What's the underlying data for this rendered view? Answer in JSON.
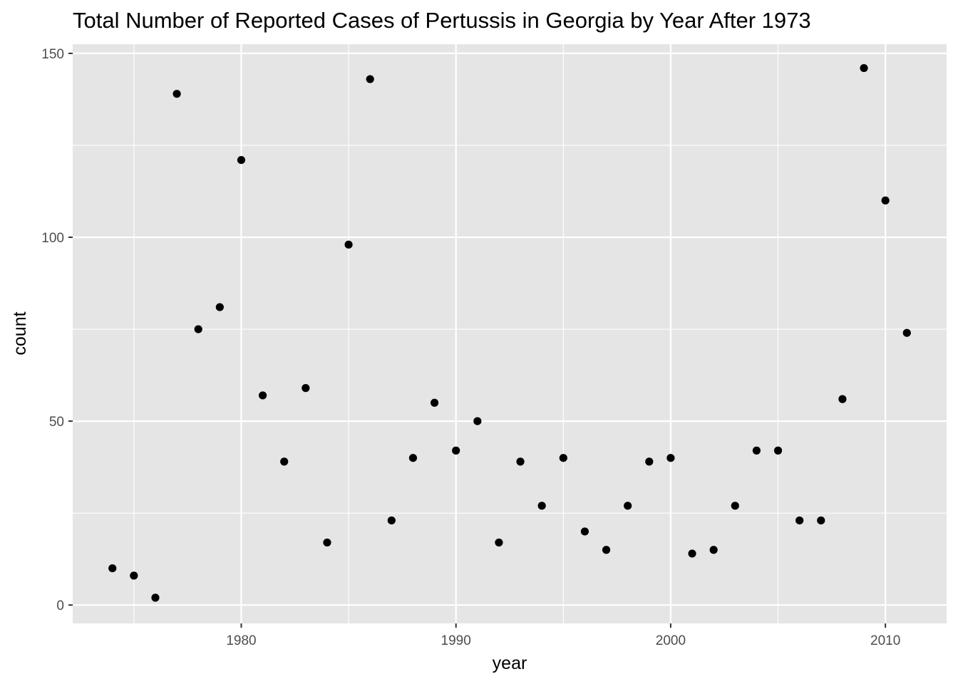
{
  "chart_data": {
    "type": "scatter",
    "title": "Total Number of Reported Cases of Pertussis in Georgia by Year After 1973",
    "xlabel": "year",
    "ylabel": "count",
    "xlim": [
      1972.15,
      2012.85
    ],
    "ylim": [
      -5,
      152.5
    ],
    "x_ticks": [
      1980,
      1990,
      2000,
      2010
    ],
    "x_tick_labels": [
      "1980",
      "1990",
      "2000",
      "2010"
    ],
    "y_ticks": [
      0,
      50,
      100,
      150
    ],
    "y_tick_labels": [
      "0",
      "50",
      "100",
      "150"
    ],
    "grid": true,
    "legend": "none",
    "colors": {
      "panel": "#e5e5e5",
      "grid": "#ffffff",
      "point": "#000000",
      "tick_text": "#4d4d4d"
    },
    "points": [
      {
        "x": 1974,
        "y": 10
      },
      {
        "x": 1975,
        "y": 8
      },
      {
        "x": 1976,
        "y": 2
      },
      {
        "x": 1977,
        "y": 139
      },
      {
        "x": 1978,
        "y": 75
      },
      {
        "x": 1979,
        "y": 81
      },
      {
        "x": 1980,
        "y": 121
      },
      {
        "x": 1981,
        "y": 57
      },
      {
        "x": 1982,
        "y": 39
      },
      {
        "x": 1983,
        "y": 59
      },
      {
        "x": 1984,
        "y": 17
      },
      {
        "x": 1985,
        "y": 98
      },
      {
        "x": 1986,
        "y": 143
      },
      {
        "x": 1987,
        "y": 23
      },
      {
        "x": 1988,
        "y": 40
      },
      {
        "x": 1989,
        "y": 55
      },
      {
        "x": 1990,
        "y": 42
      },
      {
        "x": 1991,
        "y": 50
      },
      {
        "x": 1992,
        "y": 17
      },
      {
        "x": 1993,
        "y": 39
      },
      {
        "x": 1994,
        "y": 27
      },
      {
        "x": 1995,
        "y": 40
      },
      {
        "x": 1996,
        "y": 20
      },
      {
        "x": 1997,
        "y": 15
      },
      {
        "x": 1998,
        "y": 27
      },
      {
        "x": 1999,
        "y": 39
      },
      {
        "x": 2000,
        "y": 40
      },
      {
        "x": 2001,
        "y": 14
      },
      {
        "x": 2002,
        "y": 15
      },
      {
        "x": 2003,
        "y": 27
      },
      {
        "x": 2004,
        "y": 42
      },
      {
        "x": 2005,
        "y": 42
      },
      {
        "x": 2006,
        "y": 23
      },
      {
        "x": 2007,
        "y": 23
      },
      {
        "x": 2008,
        "y": 56
      },
      {
        "x": 2009,
        "y": 146
      },
      {
        "x": 2010,
        "y": 110
      },
      {
        "x": 2011,
        "y": 74
      }
    ]
  }
}
